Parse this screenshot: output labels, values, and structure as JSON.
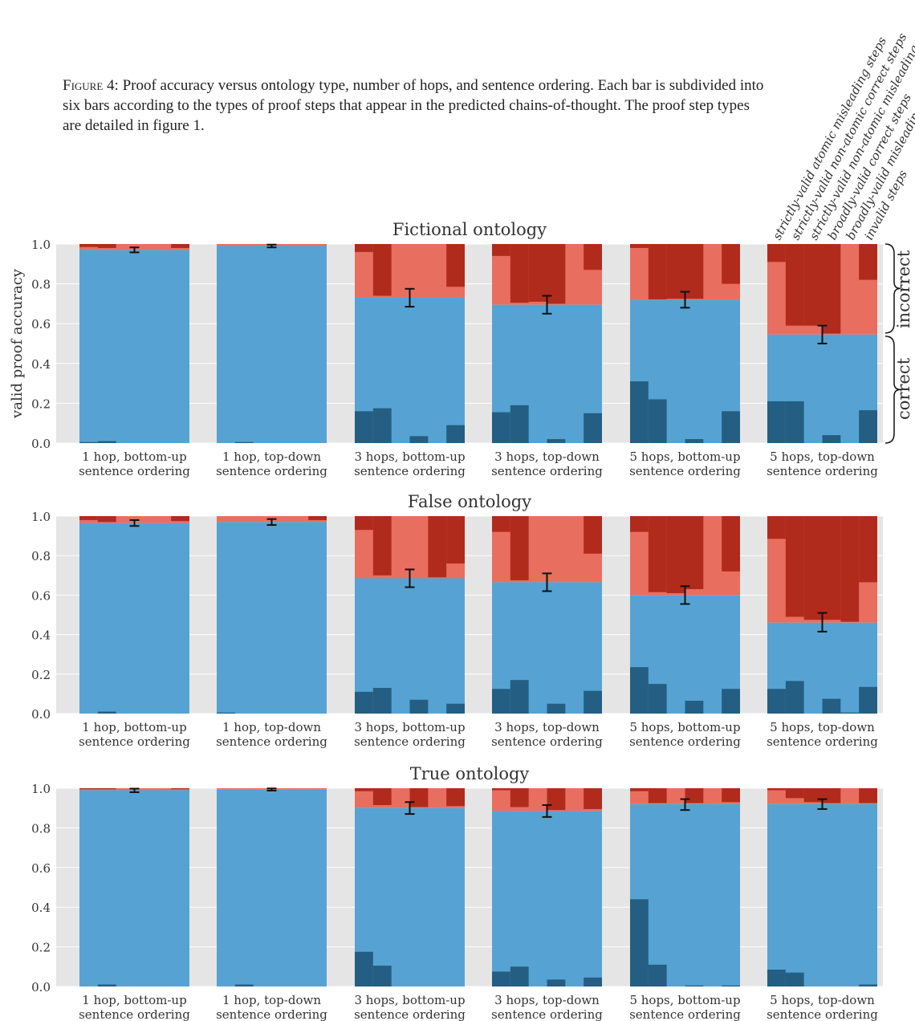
{
  "caption": {
    "label": "Figure 4:",
    "text": "Proof accuracy versus ontology type, number of hops, and sentence ordering. Each bar is subdivided into six bars according to the types of proof steps that appear in the predicted chains-of-thought. The proof step types are detailed in figure 1."
  },
  "legend_labels": [
    "strictly-valid atomic misleading steps",
    "strictly-valid non-atomic correct steps",
    "strictly-valid non-atomic misleading steps",
    "broadly-valid correct steps",
    "broadly-valid misleading steps",
    "invalid steps"
  ],
  "brace_labels": {
    "incorrect": "incorrect",
    "correct": "correct"
  },
  "colors": {
    "correct": "#56a3d3",
    "incorrect": "#e86f5f",
    "correct_dark": "#245e83",
    "incorrect_dark": "#b12b1c",
    "plot_bg": "#e5e5e5",
    "grid": "#ffffff",
    "errorbar": "#111111"
  },
  "chart_data": [
    {
      "type": "bar",
      "title": "Fictional ontology",
      "ylabel": "valid proof accuracy",
      "ylim": [
        0,
        1
      ],
      "yticks": [
        "0.0",
        "0.2",
        "0.4",
        "0.6",
        "0.8",
        "1.0"
      ],
      "grid": true,
      "categories": [
        "1 hop, bottom-up\nsentence ordering",
        "1 hop, top-down\nsentence ordering",
        "3 hops, bottom-up\nsentence ordering",
        "3 hops, top-down\nsentence ordering",
        "5 hops, bottom-up\nsentence ordering",
        "5 hops, top-down\nsentence ordering"
      ],
      "accuracy": [
        0.97,
        0.99,
        0.73,
        0.695,
        0.72,
        0.545
      ],
      "error": [
        [
          0.958,
          0.983
        ],
        [
          0.983,
          0.997
        ],
        [
          0.685,
          0.775
        ],
        [
          0.65,
          0.74
        ],
        [
          0.68,
          0.76
        ],
        [
          0.5,
          0.59
        ]
      ],
      "correct_steps": [
        [
          0.005,
          0.01,
          0,
          0,
          0,
          0
        ],
        [
          0,
          0.005,
          0,
          0,
          0,
          0
        ],
        [
          0.16,
          0.175,
          0,
          0.035,
          0,
          0.09
        ],
        [
          0.155,
          0.19,
          0,
          0.02,
          0,
          0.15
        ],
        [
          0.31,
          0.22,
          0,
          0.02,
          0,
          0.16
        ],
        [
          0.21,
          0.21,
          0,
          0.04,
          0,
          0.165
        ]
      ],
      "incorrect_steps": [
        [
          0.985,
          0.98,
          0,
          0,
          0,
          0.98
        ],
        [
          0,
          0,
          0,
          0,
          0,
          0
        ],
        [
          0.96,
          0.74,
          0,
          0,
          0,
          0.785
        ],
        [
          0.94,
          0.705,
          0.71,
          0.7,
          0,
          0.87
        ],
        [
          0.98,
          0.722,
          0.725,
          0.725,
          0,
          0.8
        ],
        [
          0.91,
          0.59,
          0.59,
          0.55,
          0,
          0.82
        ]
      ]
    },
    {
      "type": "bar",
      "title": "False ontology",
      "ylabel": "",
      "ylim": [
        0,
        1
      ],
      "yticks": [
        "0.0",
        "0.2",
        "0.4",
        "0.6",
        "0.8",
        "1.0"
      ],
      "grid": true,
      "categories": [
        "1 hop, bottom-up\nsentence ordering",
        "1 hop, top-down\nsentence ordering",
        "3 hops, bottom-up\nsentence ordering",
        "3 hops, top-down\nsentence ordering",
        "5 hops, bottom-up\nsentence ordering",
        "5 hops, top-down\nsentence ordering"
      ],
      "accuracy": [
        0.965,
        0.97,
        0.685,
        0.665,
        0.6,
        0.46
      ],
      "error": [
        [
          0.95,
          0.98
        ],
        [
          0.955,
          0.985
        ],
        [
          0.64,
          0.73
        ],
        [
          0.62,
          0.71
        ],
        [
          0.555,
          0.645
        ],
        [
          0.415,
          0.51
        ]
      ],
      "correct_steps": [
        [
          0,
          0.01,
          0,
          0,
          0,
          0
        ],
        [
          0.005,
          0,
          0,
          0,
          0,
          0
        ],
        [
          0.11,
          0.13,
          0,
          0.07,
          0,
          0.05
        ],
        [
          0.125,
          0.17,
          0,
          0.05,
          0,
          0.115
        ],
        [
          0.235,
          0.15,
          0,
          0.065,
          0,
          0.125
        ],
        [
          0.125,
          0.165,
          0,
          0.075,
          0.005,
          0.135
        ]
      ],
      "incorrect_steps": [
        [
          0.98,
          0.97,
          0,
          0,
          0,
          0.975
        ],
        [
          0,
          0,
          0,
          0,
          0,
          0.98
        ],
        [
          0.93,
          0.7,
          0,
          0,
          0.69,
          0.76
        ],
        [
          0.92,
          0.675,
          0,
          0,
          0,
          0.81
        ],
        [
          0.92,
          0.615,
          0.61,
          0.63,
          0,
          0.72
        ],
        [
          0.885,
          0.49,
          0.475,
          0.475,
          0.465,
          0.665
        ]
      ]
    },
    {
      "type": "bar",
      "title": "True ontology",
      "ylabel": "",
      "ylim": [
        0,
        1
      ],
      "yticks": [
        "0.0",
        "0.2",
        "0.4",
        "0.6",
        "0.8",
        "1.0"
      ],
      "grid": true,
      "categories": [
        "1 hop, bottom-up\nsentence ordering",
        "1 hop, top-down\nsentence ordering",
        "3 hops, bottom-up\nsentence ordering",
        "3 hops, top-down\nsentence ordering",
        "5 hops, bottom-up\nsentence ordering",
        "5 hops, top-down\nsentence ordering"
      ],
      "accuracy": [
        0.99,
        0.995,
        0.9,
        0.885,
        0.92,
        0.92
      ],
      "error": [
        [
          0.98,
          0.998
        ],
        [
          0.988,
          0.999
        ],
        [
          0.87,
          0.93
        ],
        [
          0.855,
          0.915
        ],
        [
          0.89,
          0.945
        ],
        [
          0.895,
          0.945
        ]
      ],
      "correct_steps": [
        [
          0,
          0.01,
          0,
          0,
          0,
          0
        ],
        [
          0,
          0.01,
          0,
          0,
          0,
          0
        ],
        [
          0.175,
          0.105,
          0,
          0,
          0,
          0
        ],
        [
          0.075,
          0.1,
          0,
          0.035,
          0,
          0.045
        ],
        [
          0.44,
          0.11,
          0,
          0.005,
          0,
          0.005
        ],
        [
          0.085,
          0.07,
          0,
          0,
          0,
          0.01
        ]
      ],
      "incorrect_steps": [
        [
          0.995,
          0.995,
          0,
          0,
          0,
          0.995
        ],
        [
          0,
          0,
          0,
          0,
          0,
          0
        ],
        [
          0.985,
          0.915,
          0,
          0.905,
          0,
          0.91
        ],
        [
          0.99,
          0.905,
          0,
          0.89,
          0,
          0.895
        ],
        [
          0.985,
          0.925,
          0,
          0.925,
          0,
          0.93
        ],
        [
          0.99,
          0.95,
          0.93,
          0.925,
          0,
          0.925
        ]
      ]
    }
  ]
}
